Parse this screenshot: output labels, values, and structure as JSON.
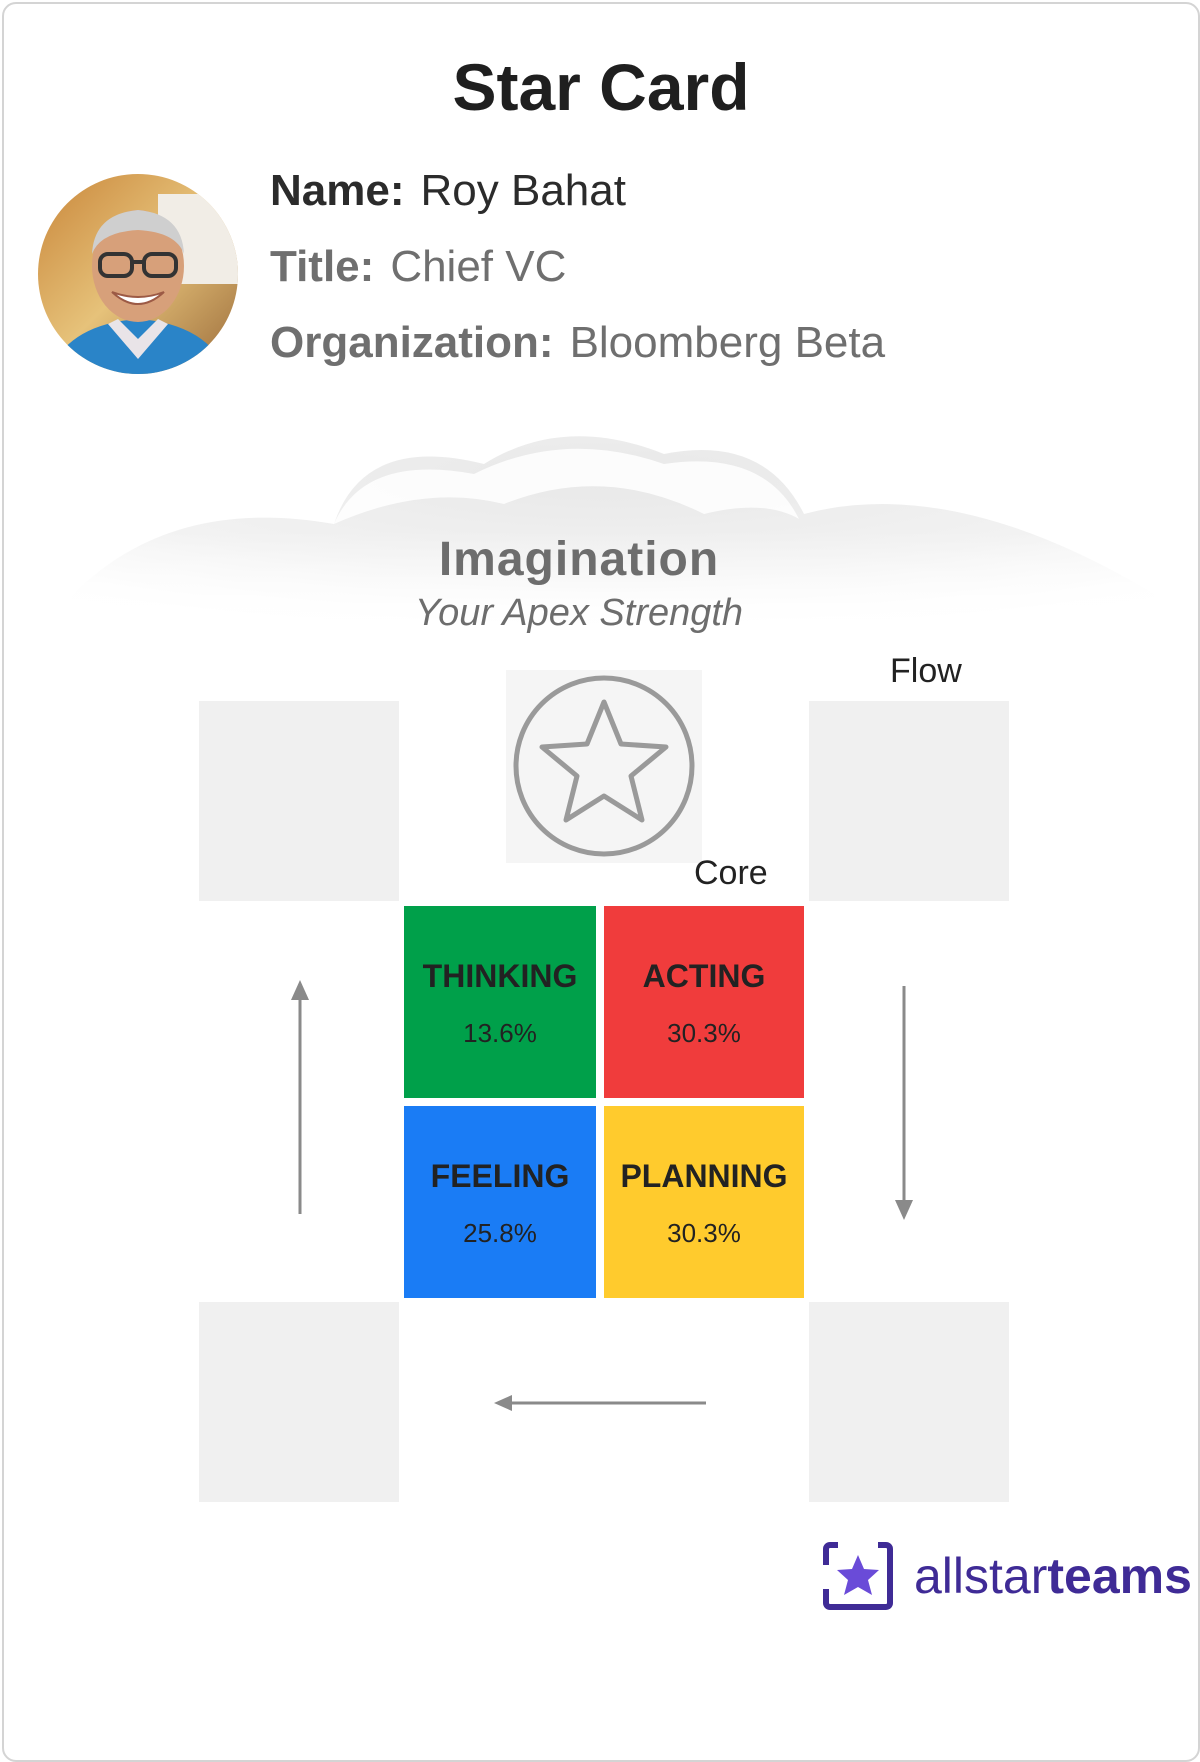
{
  "card": {
    "title": "Star Card"
  },
  "profile": {
    "name_label": "Name:",
    "name_value": "Roy Bahat",
    "title_label": "Title:",
    "title_value": "Chief VC",
    "org_label": "Organization:",
    "org_value": "Bloomberg Beta"
  },
  "apex": {
    "strength": "Imagination",
    "subtitle": "Your Apex Strength"
  },
  "labels": {
    "flow": "Flow",
    "core": "Core"
  },
  "quadrants": [
    {
      "name": "THINKING",
      "value": "13.6%",
      "color": "#00a04a"
    },
    {
      "name": "ACTING",
      "value": "30.3%",
      "color": "#f03c3c"
    },
    {
      "name": "FEELING",
      "value": "25.8%",
      "color": "#1a7cf5"
    },
    {
      "name": "PLANNING",
      "value": "30.3%",
      "color": "#ffcb2d"
    }
  ],
  "logo": {
    "text_light": "allstar",
    "text_bold": "teams",
    "color": "#3f2b96"
  },
  "icons": [
    "star-icon",
    "arrow-up-icon",
    "arrow-down-icon",
    "arrow-left-icon",
    "allstarteams-logo-icon"
  ]
}
